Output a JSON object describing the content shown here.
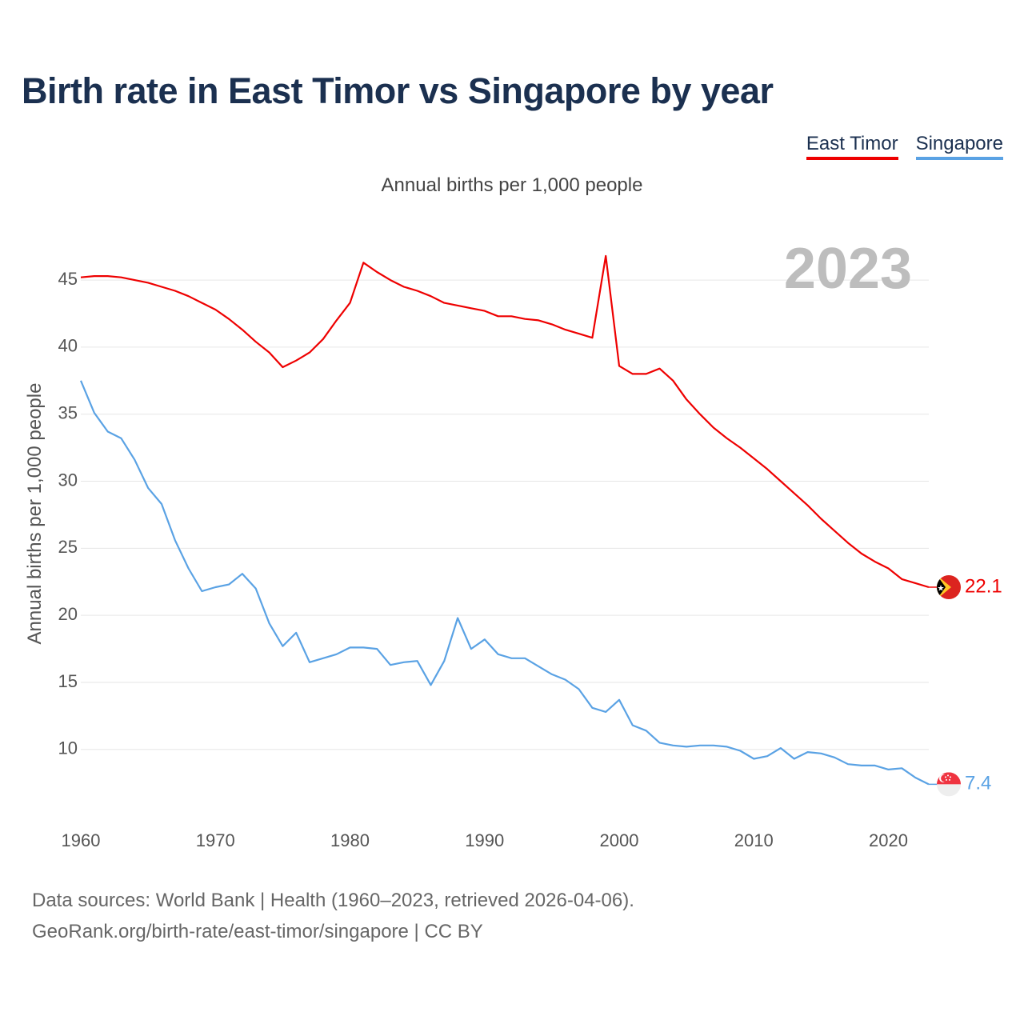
{
  "title": "Birth rate in East Timor vs Singapore by year",
  "subtitle": "Annual births per 1,000 people",
  "legend": [
    {
      "label": "East Timor",
      "color": "#ee0000"
    },
    {
      "label": "Singapore",
      "color": "#5aa2e4"
    }
  ],
  "source_line1": "Data sources: World Bank | Health (1960–2023, retrieved 2026-04-06).",
  "source_line2": "GeoRank.org/birth-rate/east-timor/singapore | CC BY",
  "chart_data": {
    "type": "line",
    "title": "Birth rate in East Timor vs Singapore by year",
    "xlabel": "",
    "ylabel": "Annual births per 1,000 people",
    "year_label": "2023",
    "xlim": [
      1960,
      2023
    ],
    "ylim": [
      5,
      48
    ],
    "x_ticks": [
      1960,
      1970,
      1980,
      1990,
      2000,
      2010,
      2020
    ],
    "y_ticks": [
      10,
      15,
      20,
      25,
      30,
      35,
      40,
      45
    ],
    "grid": true,
    "x": [
      1960,
      1961,
      1962,
      1963,
      1964,
      1965,
      1966,
      1967,
      1968,
      1969,
      1970,
      1971,
      1972,
      1973,
      1974,
      1975,
      1976,
      1977,
      1978,
      1979,
      1980,
      1981,
      1982,
      1983,
      1984,
      1985,
      1986,
      1987,
      1988,
      1989,
      1990,
      1991,
      1992,
      1993,
      1994,
      1995,
      1996,
      1997,
      1998,
      1999,
      2000,
      2001,
      2002,
      2003,
      2004,
      2005,
      2006,
      2007,
      2008,
      2009,
      2010,
      2011,
      2012,
      2013,
      2014,
      2015,
      2016,
      2017,
      2018,
      2019,
      2020,
      2021,
      2022,
      2023
    ],
    "series": [
      {
        "name": "East Timor",
        "color": "#ee0000",
        "end_label": "22.1",
        "values": [
          45.2,
          45.3,
          45.3,
          45.2,
          45.0,
          44.8,
          44.5,
          44.2,
          43.8,
          43.3,
          42.8,
          42.1,
          41.3,
          40.4,
          39.6,
          38.5,
          39.0,
          39.6,
          40.6,
          42.0,
          43.3,
          46.3,
          45.6,
          45.0,
          44.5,
          44.2,
          43.8,
          43.3,
          43.1,
          42.9,
          42.7,
          42.3,
          42.3,
          42.1,
          42.0,
          41.7,
          41.3,
          41.0,
          40.7,
          46.8,
          38.6,
          38.0,
          38.0,
          38.4,
          37.5,
          36.1,
          35.0,
          34.0,
          33.2,
          32.5,
          31.7,
          30.9,
          30.0,
          29.1,
          28.2,
          27.2,
          26.3,
          25.4,
          24.6,
          24.0,
          23.5,
          22.7,
          22.4,
          22.1
        ]
      },
      {
        "name": "Singapore",
        "color": "#5aa2e4",
        "end_label": "7.4",
        "values": [
          37.5,
          35.1,
          33.7,
          33.2,
          31.6,
          29.5,
          28.3,
          25.6,
          23.5,
          21.8,
          22.1,
          22.3,
          23.1,
          22.0,
          19.4,
          17.7,
          18.7,
          16.5,
          16.8,
          17.1,
          17.6,
          17.6,
          17.5,
          16.3,
          16.5,
          16.6,
          14.8,
          16.6,
          19.8,
          17.5,
          18.2,
          17.1,
          16.8,
          16.8,
          16.2,
          15.6,
          15.2,
          14.5,
          13.1,
          12.8,
          13.7,
          11.8,
          11.4,
          10.5,
          10.3,
          10.2,
          10.3,
          10.3,
          10.2,
          9.9,
          9.3,
          9.5,
          10.1,
          9.3,
          9.8,
          9.7,
          9.4,
          8.9,
          8.8,
          8.8,
          8.5,
          8.6,
          7.9,
          7.4
        ]
      }
    ]
  }
}
